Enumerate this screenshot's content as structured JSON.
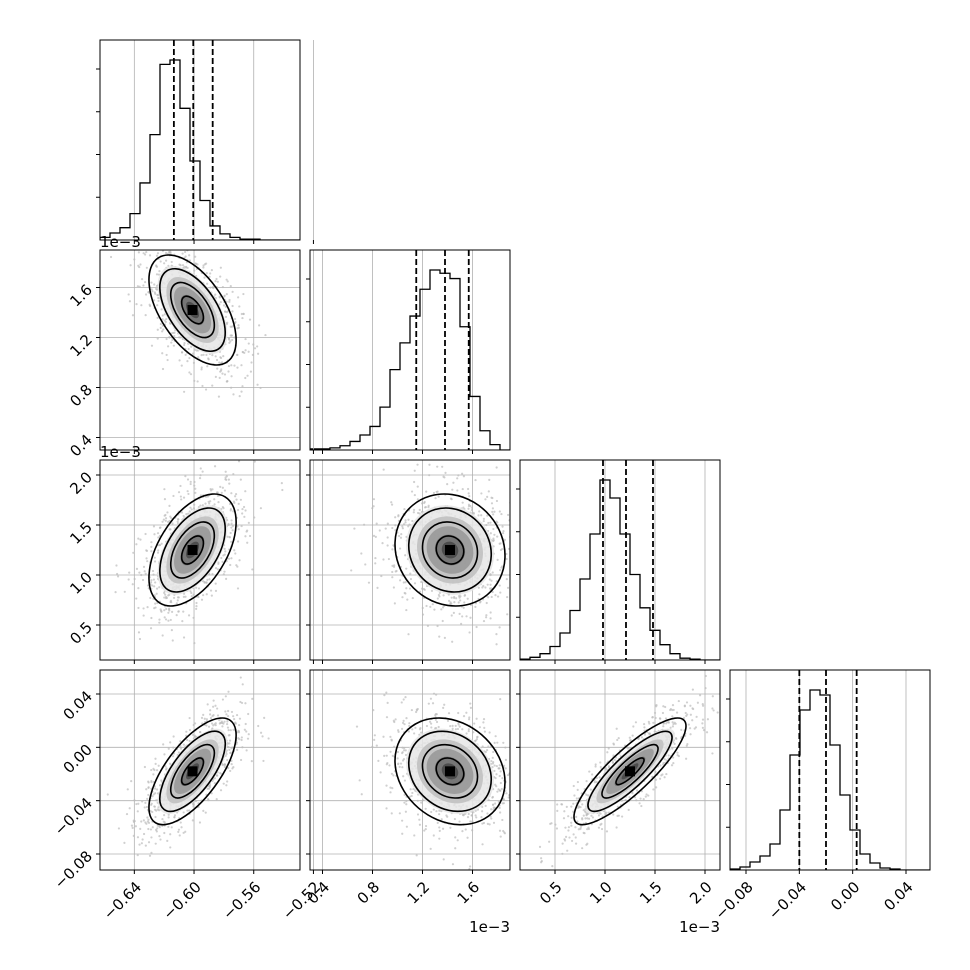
{
  "chart_data": {
    "type": "corner",
    "dimensions": [
      {
        "ticks": [
          -0.64,
          -0.6,
          -0.56,
          -0.52
        ],
        "tick_labels": [
          "−0.64",
          "−0.60",
          "−0.56",
          "−0.52"
        ],
        "range": [
          -0.663,
          -0.529
        ],
        "offset_label": ""
      },
      {
        "ticks": [
          0.4,
          0.8,
          1.2,
          1.6
        ],
        "tick_labels": [
          "0.4",
          "0.8",
          "1.2",
          "1.6"
        ],
        "range": [
          0.3,
          1.9
        ],
        "offset_label": "1e−3"
      },
      {
        "ticks": [
          0.5,
          1.0,
          1.5,
          2.0
        ],
        "tick_labels": [
          "0.5",
          "1.0",
          "1.5",
          "2.0"
        ],
        "range": [
          0.15,
          2.15
        ],
        "offset_label": "1e−3"
      },
      {
        "ticks": [
          -0.08,
          -0.04,
          0.0,
          0.04
        ],
        "tick_labels": [
          "−0.08",
          "−0.04",
          "0.00",
          "0.04"
        ],
        "range": [
          -0.092,
          0.058
        ],
        "offset_label": ""
      }
    ],
    "histograms": [
      {
        "bins_start": -0.663,
        "bin_width": 0.0067,
        "counts": [
          3,
          8,
          14,
          30,
          65,
          120,
          200,
          205,
          150,
          90,
          45,
          16,
          7,
          3,
          1,
          1,
          0,
          0,
          0,
          0
        ],
        "quantiles": [
          -0.6135,
          -0.6005,
          -0.5875
        ]
      },
      {
        "bins_start": 0.3,
        "bin_width": 0.08,
        "counts": [
          1,
          1,
          2,
          4,
          8,
          14,
          22,
          40,
          75,
          100,
          125,
          150,
          168,
          165,
          160,
          115,
          50,
          18,
          5,
          0
        ],
        "quantiles": [
          1.15,
          1.38,
          1.57
        ]
      },
      {
        "bins_start": 0.15,
        "bin_width": 0.1,
        "counts": [
          1,
          3,
          7,
          15,
          30,
          55,
          90,
          140,
          200,
          180,
          140,
          95,
          58,
          33,
          17,
          7,
          2,
          1,
          0,
          0
        ],
        "quantiles": [
          0.98,
          1.21,
          1.48
        ]
      },
      {
        "bins_start": -0.092,
        "bin_width": 0.0075,
        "counts": [
          1,
          3,
          8,
          14,
          26,
          60,
          115,
          160,
          180,
          175,
          125,
          75,
          40,
          16,
          7,
          2,
          1,
          0,
          0,
          0
        ],
        "quantiles": [
          -0.04,
          -0.02,
          0.003
        ]
      }
    ],
    "pairs": [
      {
        "i": 1,
        "j": 0,
        "mean": [
          -0.601,
          1.42
        ],
        "sd": [
          0.0146,
          0.22
        ],
        "r": -0.55
      },
      {
        "i": 2,
        "j": 0,
        "mean": [
          -0.601,
          1.25
        ],
        "sd": [
          0.0146,
          0.28
        ],
        "r": 0.5
      },
      {
        "i": 2,
        "j": 1,
        "mean": [
          1.42,
          1.25
        ],
        "sd": [
          0.22,
          0.28
        ],
        "r": -0.1
      },
      {
        "i": 3,
        "j": 0,
        "mean": [
          -0.601,
          -0.018
        ],
        "sd": [
          0.0146,
          0.02
        ],
        "r": 0.68
      },
      {
        "i": 3,
        "j": 1,
        "mean": [
          1.42,
          -0.018
        ],
        "sd": [
          0.22,
          0.02
        ],
        "r": -0.2
      },
      {
        "i": 3,
        "j": 2,
        "mean": [
          1.25,
          -0.018
        ],
        "sd": [
          0.28,
          0.02
        ],
        "r": 0.85
      }
    ],
    "contour_levels_sigma": [
      0.5,
      1.0,
      1.5,
      2.0
    ],
    "grid": true,
    "colors": {
      "hist": "#000000",
      "points": "#bcbcbc",
      "density": "#000000",
      "grid": "#b0b0b0"
    }
  }
}
